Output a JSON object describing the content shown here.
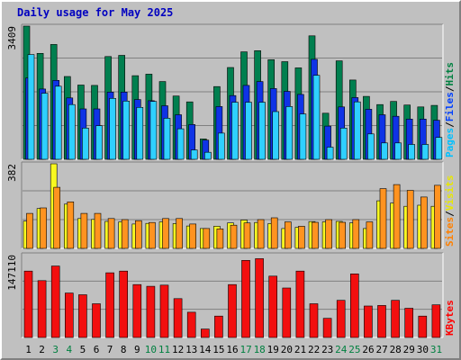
{
  "title": "Daily usage for May 2025",
  "chart_data": [
    {
      "type": "bar",
      "panel": "top",
      "ymax_label": "3409",
      "ylim": [
        0,
        3409
      ],
      "legend": [
        {
          "text": "Pages",
          "color": "#00c0ff"
        },
        {
          "text": "/",
          "color": "#000000"
        },
        {
          "text": "Files",
          "color": "#0040ff"
        },
        {
          "text": "/",
          "color": "#000000"
        },
        {
          "text": "Hits",
          "color": "#008040"
        }
      ],
      "series": [
        {
          "name": "Hits",
          "color": "#007f4f",
          "values": [
            3409,
            2710,
            2940,
            2120,
            1900,
            1890,
            2630,
            2660,
            2140,
            2180,
            1990,
            1620,
            1470,
            520,
            1860,
            2350,
            2750,
            2780,
            2550,
            2500,
            2340,
            3160,
            1180,
            2520,
            2030,
            1610,
            1400,
            1480,
            1390,
            1340,
            1380
          ]
        },
        {
          "name": "Files",
          "color": "#0f33e6",
          "values": [
            2080,
            1800,
            2020,
            1570,
            1290,
            1290,
            1720,
            1720,
            1530,
            1500,
            1370,
            1140,
            890,
            490,
            1350,
            1630,
            1890,
            1990,
            1810,
            1740,
            1660,
            2560,
            850,
            1340,
            1580,
            1280,
            1140,
            1100,
            1030,
            1030,
            1000
          ]
        },
        {
          "name": "Pages",
          "color": "#2fd0ff",
          "values": [
            2680,
            1690,
            1870,
            1400,
            800,
            860,
            1560,
            1490,
            1330,
            1480,
            1050,
            780,
            240,
            180,
            670,
            1460,
            1460,
            1460,
            1220,
            1350,
            1160,
            2150,
            310,
            800,
            1470,
            650,
            420,
            420,
            380,
            380,
            560
          ]
        }
      ]
    },
    {
      "type": "bar",
      "panel": "middle",
      "ymax_label": "382",
      "ylim": [
        0,
        382
      ],
      "legend": [
        {
          "text": "Sites",
          "color": "#ff8000"
        },
        {
          "text": "/",
          "color": "#000000"
        },
        {
          "text": "Visits",
          "color": "#e8e800"
        }
      ],
      "series": [
        {
          "name": "Visits",
          "color": "#f8f820",
          "values": [
            123,
            180,
            382,
            200,
            135,
            131,
            122,
            120,
            110,
            113,
            120,
            112,
            101,
            90,
            100,
            115,
            128,
            117,
            112,
            90,
            95,
            121,
            120,
            122,
            115,
            90,
            215,
            205,
            190,
            195,
            190
          ]
        },
        {
          "name": "Sites",
          "color": "#ff9320",
          "values": [
            158,
            183,
            276,
            210,
            158,
            158,
            135,
            130,
            125,
            117,
            135,
            135,
            110,
            90,
            88,
            105,
            115,
            130,
            138,
            120,
            100,
            118,
            130,
            118,
            130,
            120,
            270,
            288,
            262,
            232,
            285
          ]
        }
      ]
    },
    {
      "type": "bar",
      "panel": "bottom",
      "ymax_label": "147110",
      "ylim": [
        0,
        147110
      ],
      "legend": [
        {
          "text": "KBytes",
          "color": "#ff0000"
        }
      ],
      "series": [
        {
          "name": "KBytes",
          "color": "#f20f0f",
          "values": [
            118000,
            101000,
            127000,
            79000,
            76000,
            60000,
            115000,
            118000,
            94000,
            91000,
            93000,
            69000,
            45000,
            15000,
            38000,
            94000,
            137000,
            140000,
            109000,
            88000,
            118000,
            60000,
            34000,
            66000,
            113000,
            56000,
            57000,
            66000,
            52000,
            38000,
            58000
          ]
        }
      ]
    }
  ],
  "days": [
    "1",
    "2",
    "3",
    "4",
    "5",
    "6",
    "7",
    "8",
    "9",
    "10",
    "11",
    "12",
    "13",
    "14",
    "15",
    "16",
    "17",
    "18",
    "19",
    "20",
    "21",
    "22",
    "23",
    "24",
    "25",
    "26",
    "27",
    "28",
    "29",
    "30",
    "31"
  ],
  "weekend_days": [
    3,
    4,
    10,
    11,
    17,
    18,
    24,
    25,
    31
  ],
  "colors": {
    "weekday": "#000000",
    "weekend": "#008040"
  }
}
